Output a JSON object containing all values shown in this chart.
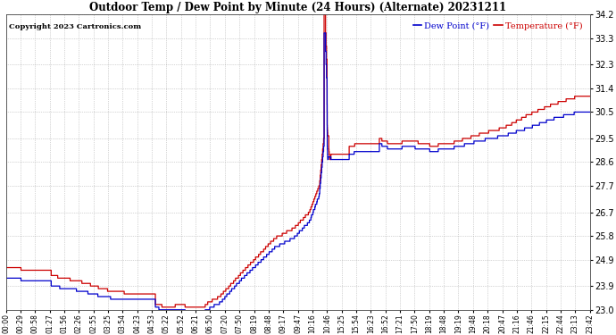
{
  "title": "Outdoor Temp / Dew Point by Minute (24 Hours) (Alternate) 20231211",
  "copyright": "Copyright 2023 Cartronics.com",
  "ylim": [
    23.0,
    34.2
  ],
  "yticks": [
    23.0,
    23.9,
    24.9,
    25.8,
    26.7,
    27.7,
    28.6,
    29.5,
    30.5,
    31.4,
    32.3,
    33.3,
    34.2
  ],
  "legend_dew": "Dew Point (°F)",
  "legend_temp": "Temperature (°F)",
  "color_dew": "#0000cc",
  "color_temp": "#cc0000",
  "bg_color": "#ffffff",
  "grid_color": "#999999",
  "title_color": "#000000",
  "copyright_color": "#000000",
  "legend_dew_color": "#0000cc",
  "legend_temp_color": "#cc0000",
  "x_tick_labels": [
    "00:00",
    "00:29",
    "00:58",
    "01:27",
    "01:56",
    "02:26",
    "02:55",
    "03:25",
    "03:54",
    "04:23",
    "04:53",
    "05:22",
    "05:52",
    "06:21",
    "06:50",
    "07:20",
    "07:50",
    "08:19",
    "08:48",
    "09:17",
    "09:47",
    "10:16",
    "10:46",
    "15:25",
    "15:54",
    "16:23",
    "16:52",
    "17:21",
    "17:50",
    "18:19",
    "18:48",
    "19:19",
    "19:48",
    "20:18",
    "20:47",
    "21:16",
    "21:46",
    "22:15",
    "22:44",
    "23:13",
    "23:42"
  ]
}
